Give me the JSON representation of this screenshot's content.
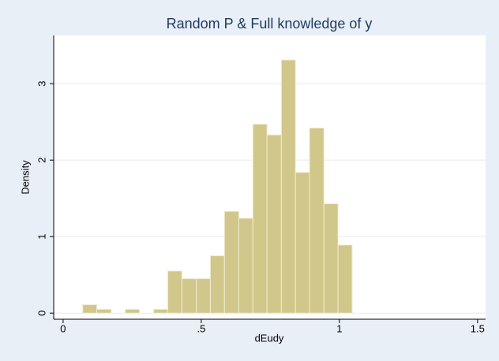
{
  "chart_data": {
    "type": "histogram",
    "title": "Random P & Full knowledge of y",
    "x_label": "dEudy",
    "y_label": "Density",
    "bins": [
      0.071,
      0.122,
      0.174,
      0.225,
      0.276,
      0.328,
      0.379,
      0.43,
      0.482,
      0.533,
      0.584,
      0.636,
      0.687,
      0.738,
      0.79,
      0.841,
      0.892,
      0.944,
      0.995,
      1.046
    ],
    "values": [
      0.11,
      0.05,
      0,
      0.05,
      0,
      0.05,
      0.55,
      0.45,
      0.45,
      0.75,
      1.33,
      1.24,
      2.47,
      2.33,
      3.31,
      1.84,
      2.42,
      1.43,
      0.89
    ],
    "color": "#d1c78a",
    "xlim": [
      -0.034,
      1.529
    ],
    "xticks": [
      0,
      {
        "value": 0.5,
        "label": ".5"
      },
      1,
      1.5
    ],
    "ylim": [
      -0.08,
      3.63
    ],
    "yticks": [
      0,
      1,
      2,
      3
    ],
    "grid": true
  }
}
